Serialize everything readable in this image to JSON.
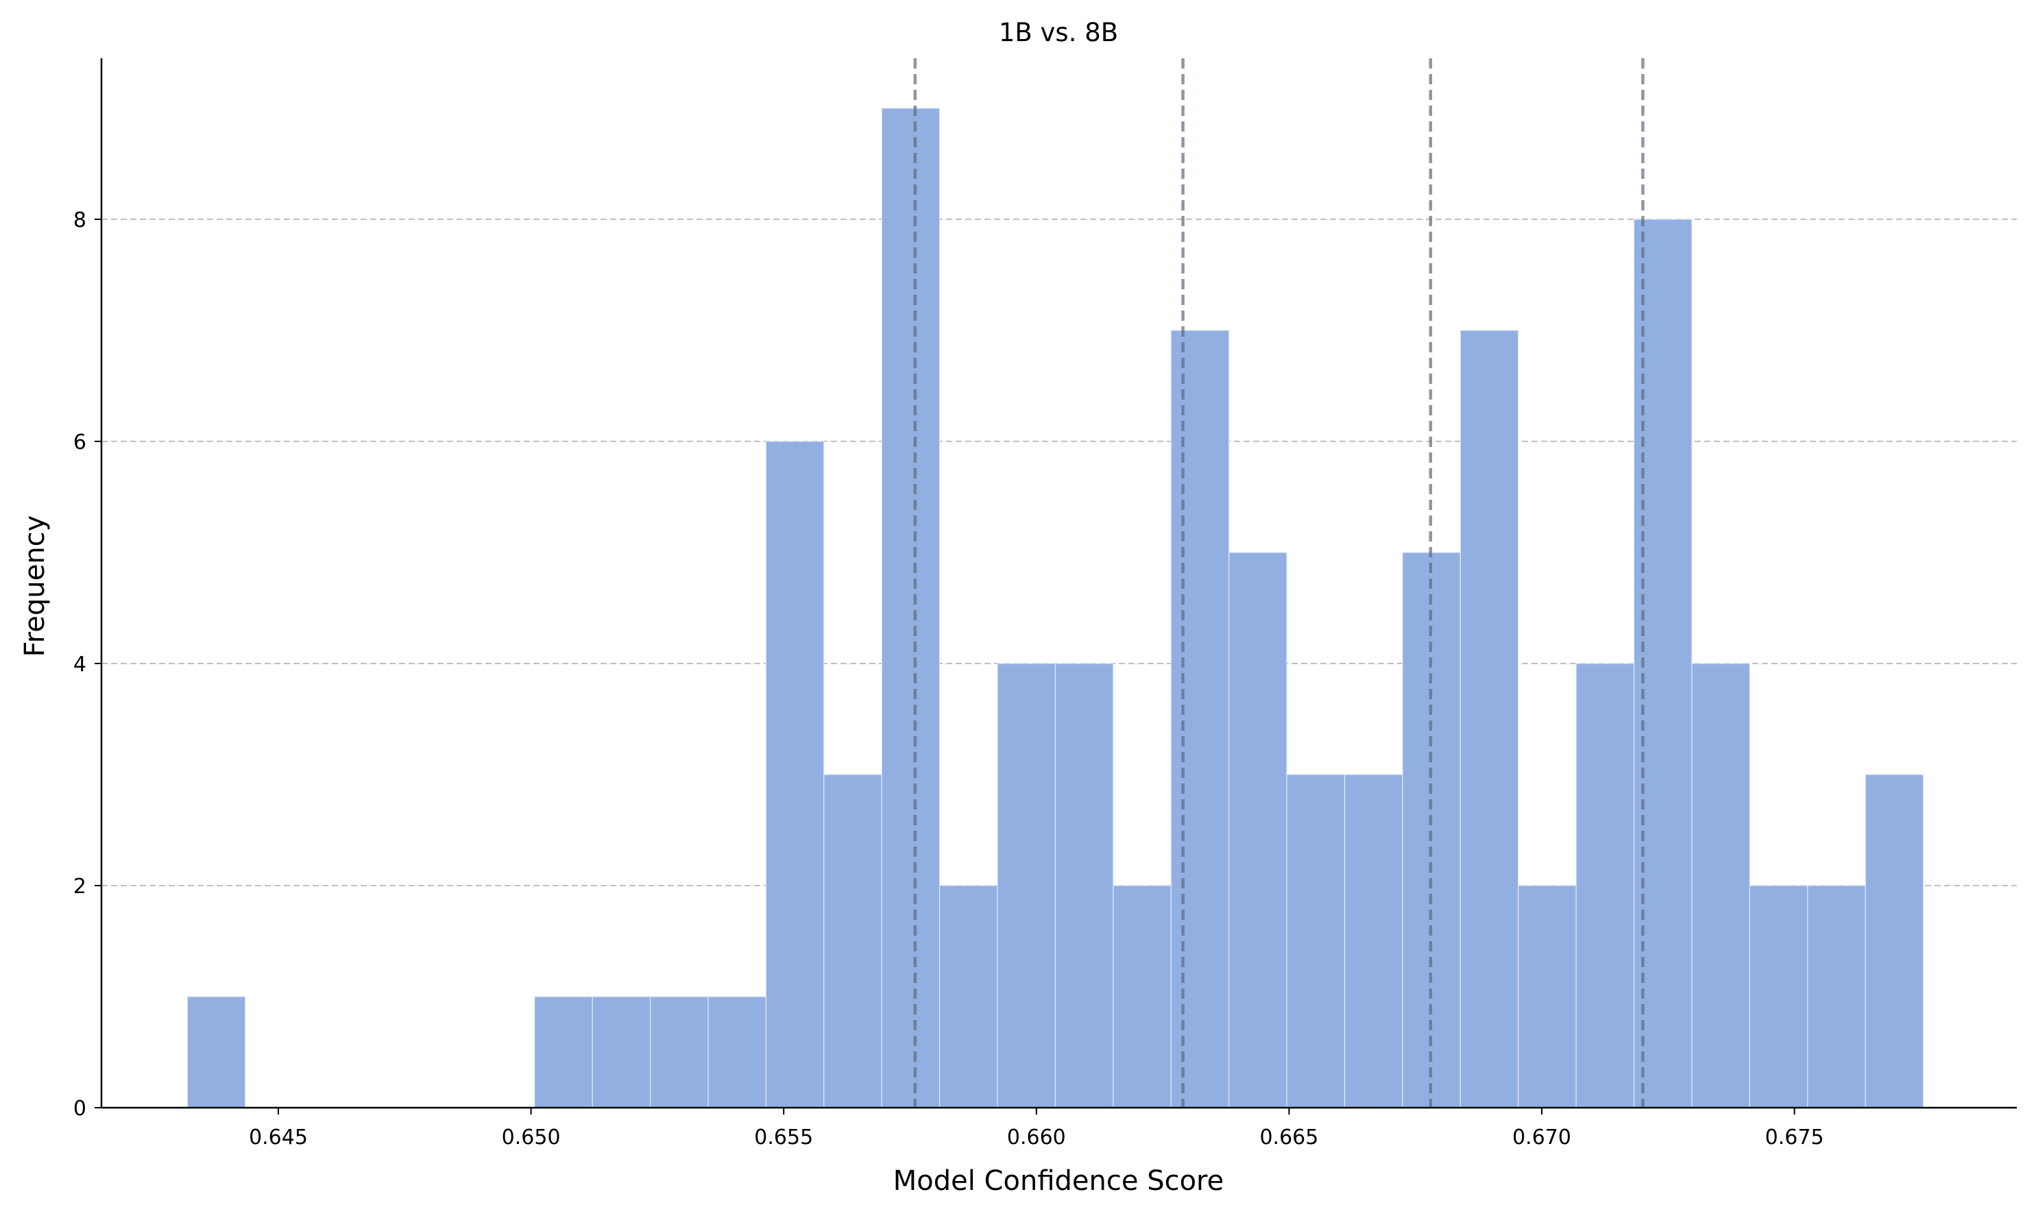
{
  "chart_data": {
    "type": "bar",
    "title": "1B vs. 8B",
    "xlabel": "Model Confidence Score",
    "ylabel": "Frequency",
    "xlim": [
      0.6415,
      0.6794
    ],
    "ylim": [
      0,
      9.45
    ],
    "x_ticks": [
      "0.645",
      "0.650",
      "0.655",
      "0.660",
      "0.665",
      "0.670",
      "0.675"
    ],
    "x_tick_values": [
      0.645,
      0.65,
      0.655,
      0.66,
      0.665,
      0.67,
      0.675
    ],
    "y_ticks": [
      "0",
      "2",
      "4",
      "6",
      "8"
    ],
    "y_tick_values": [
      0,
      2,
      4,
      6,
      8
    ],
    "grid": "horizontal dashed",
    "bins": {
      "start": 0.6432,
      "width": 0.001145,
      "counts": [
        1,
        0,
        0,
        0,
        0,
        0,
        1,
        1,
        1,
        1,
        6,
        3,
        9,
        2,
        4,
        4,
        2,
        7,
        5,
        3,
        3,
        5,
        7,
        2,
        4,
        8,
        4,
        2,
        2,
        3
      ]
    },
    "reference_lines": [
      0.6576,
      0.6629,
      0.6678,
      0.672
    ],
    "colors": {
      "bar_fill": "#92afe2",
      "bar_edge": "#e2e9f7",
      "reference_line": "#5c6b7c",
      "grid": "#c0c0c0",
      "axis": "#000000"
    }
  }
}
